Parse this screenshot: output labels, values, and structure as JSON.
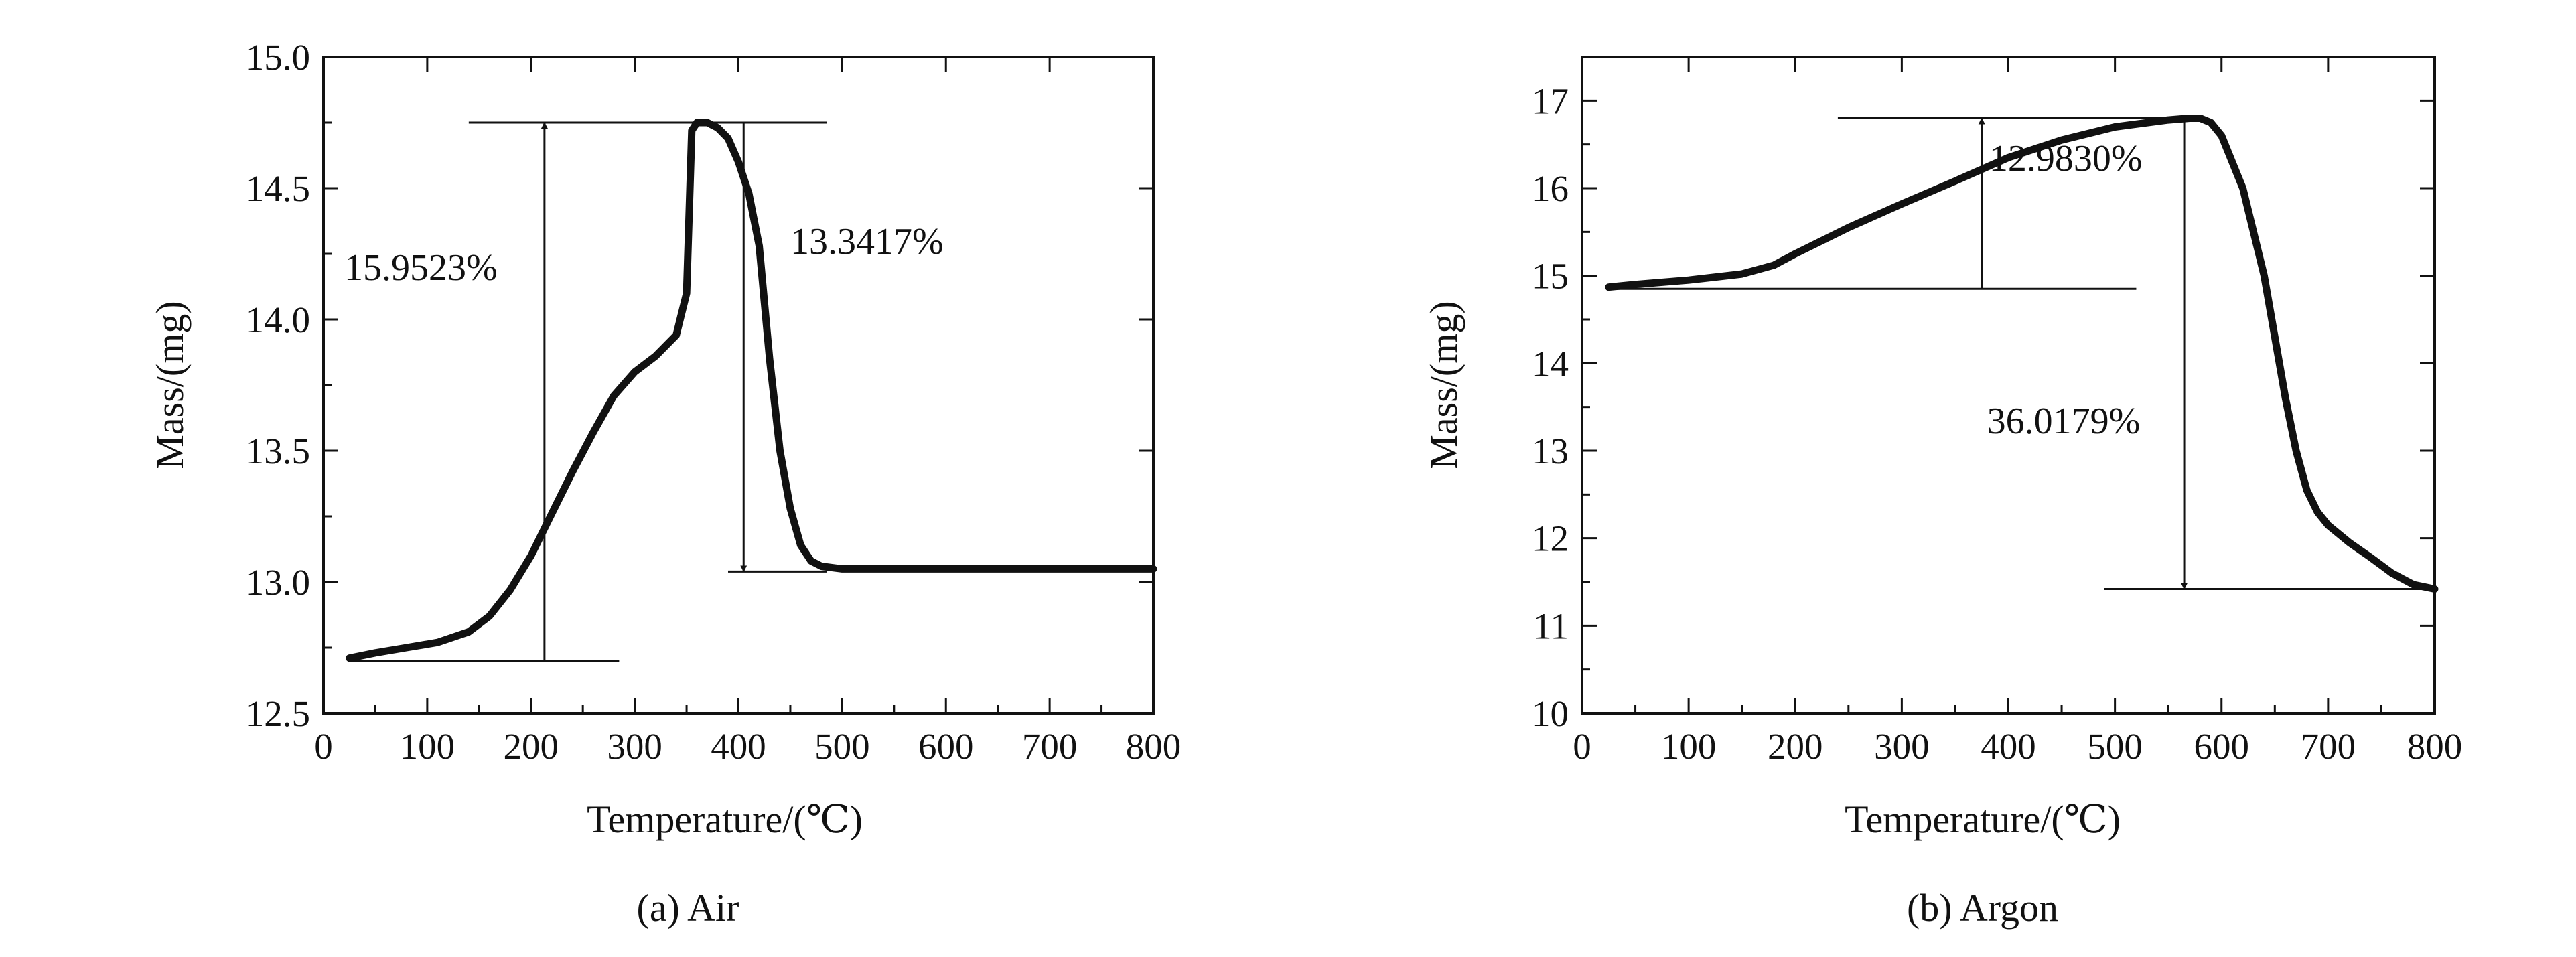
{
  "chart_data": [
    {
      "type": "line",
      "caption": "(a) Air",
      "xlabel": "Temperature/(℃)",
      "ylabel": "Mass/(mg)",
      "xlim": [
        0,
        800
      ],
      "ylim": [
        12.5,
        15.0
      ],
      "xticks": [
        0,
        100,
        200,
        300,
        400,
        500,
        600,
        700,
        800
      ],
      "yticks": [
        12.5,
        13.0,
        13.5,
        14.0,
        14.5,
        15.0
      ],
      "ytick_labels": [
        "12.5",
        "13.0",
        "13.5",
        "14.0",
        "14.5",
        "15.0"
      ],
      "grid": false,
      "series": [
        {
          "x": [
            25,
            50,
            80,
            110,
            140,
            160,
            180,
            200,
            220,
            240,
            260,
            280,
            300,
            320,
            340,
            350,
            355,
            360,
            370,
            380,
            390,
            400,
            410,
            420,
            430,
            440,
            450,
            460,
            470,
            480,
            500,
            550,
            600,
            700,
            800
          ],
          "y": [
            12.71,
            12.73,
            12.75,
            12.77,
            12.81,
            12.87,
            12.97,
            13.1,
            13.26,
            13.42,
            13.57,
            13.71,
            13.8,
            13.86,
            13.94,
            14.1,
            14.72,
            14.75,
            14.75,
            14.73,
            14.69,
            14.6,
            14.48,
            14.28,
            13.85,
            13.5,
            13.28,
            13.14,
            13.08,
            13.06,
            13.05,
            13.05,
            13.05,
            13.05,
            13.05
          ]
        }
      ],
      "reference_lines": [
        {
          "y": 14.75,
          "x_from": 140,
          "x_to": 485
        },
        {
          "y": 12.7,
          "x_from": 25,
          "x_to": 285
        },
        {
          "y": 13.04,
          "x_from": 390,
          "x_to": 485
        }
      ],
      "arrows": [
        {
          "x": 213,
          "y_from": 12.7,
          "y_to": 14.75
        },
        {
          "x": 405,
          "y_from": 14.75,
          "y_to": 13.04
        }
      ],
      "annotations": [
        {
          "text": "15.9523%",
          "x": 20,
          "y": 14.15
        },
        {
          "text": "13.3417%",
          "x": 450,
          "y": 14.25
        }
      ]
    },
    {
      "type": "line",
      "caption": "(b) Argon",
      "xlabel": "Temperature/(℃)",
      "ylabel": "Mass/(mg)",
      "xlim": [
        0,
        800
      ],
      "ylim": [
        10,
        17.5
      ],
      "xticks": [
        0,
        100,
        200,
        300,
        400,
        500,
        600,
        700,
        800
      ],
      "yticks": [
        10,
        11,
        12,
        13,
        14,
        15,
        16,
        17
      ],
      "ytick_labels": [
        "10",
        "11",
        "12",
        "13",
        "14",
        "15",
        "16",
        "17"
      ],
      "grid": false,
      "series": [
        {
          "x": [
            25,
            50,
            100,
            150,
            180,
            200,
            250,
            300,
            350,
            400,
            450,
            500,
            550,
            570,
            580,
            590,
            600,
            620,
            640,
            650,
            660,
            670,
            680,
            690,
            700,
            720,
            740,
            760,
            780,
            800
          ],
          "y": [
            14.87,
            14.9,
            14.95,
            15.02,
            15.12,
            15.25,
            15.55,
            15.82,
            16.08,
            16.35,
            16.55,
            16.7,
            16.78,
            16.8,
            16.8,
            16.75,
            16.6,
            16.0,
            15.0,
            14.3,
            13.6,
            13.0,
            12.55,
            12.3,
            12.15,
            11.95,
            11.78,
            11.6,
            11.47,
            11.42
          ]
        }
      ],
      "reference_lines": [
        {
          "y": 16.8,
          "x_from": 240,
          "x_to": 570
        },
        {
          "y": 14.85,
          "x_from": 25,
          "x_to": 520
        },
        {
          "y": 11.42,
          "x_from": 490,
          "x_to": 800
        }
      ],
      "arrows": [
        {
          "x": 375,
          "y_from": 14.85,
          "y_to": 16.8
        },
        {
          "x": 565,
          "y_from": 16.8,
          "y_to": 11.42
        }
      ],
      "annotations": [
        {
          "text": "12.9830%",
          "x": 382,
          "y": 16.2
        },
        {
          "text": "36.0179%",
          "x": 380,
          "y": 13.2
        }
      ]
    }
  ]
}
